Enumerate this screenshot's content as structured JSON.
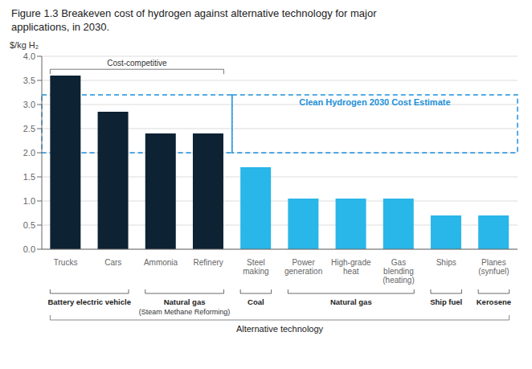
{
  "chart_data": {
    "type": "bar",
    "title": "Figure 1.3 Breakeven cost of hydrogen against alternative technology for major\napplications, in 2030.",
    "categories": [
      "Trucks",
      "Cars",
      "Ammonia",
      "Refinery",
      "Steel\nmaking",
      "Power\ngeneration",
      "High-grade\nheat",
      "Gas\nblending\n(heating)",
      "Ships",
      "Planes\n(synfuel)"
    ],
    "values": [
      3.6,
      2.85,
      2.4,
      2.4,
      1.7,
      1.05,
      1.05,
      1.05,
      0.7,
      0.7
    ],
    "colors": [
      "#0d2233",
      "#0d2233",
      "#0d2233",
      "#0d2233",
      "#29b6e8",
      "#29b6e8",
      "#29b6e8",
      "#29b6e8",
      "#29b6e8",
      "#29b6e8"
    ],
    "ylim": [
      0,
      4.0
    ],
    "yticks": [
      {
        "value": 0,
        "label": "0.0"
      },
      0.5,
      {
        "value": 1,
        "label": "1.0"
      },
      1.5,
      {
        "value": 2,
        "label": "2.0"
      },
      2.5,
      {
        "value": 3,
        "label": "3.0"
      },
      3.5,
      {
        "value": 4,
        "label": "4.0"
      }
    ],
    "ylabel": "$/kg H₂",
    "grid": true,
    "annotations": [
      {
        "text": "Cost-competitive",
        "categories": [
          "Trucks",
          "Cars",
          "Ammonia",
          "Refinery"
        ]
      },
      {
        "text": "Clean Hydrogen 2030 Cost Estimate",
        "range": [
          2.0,
          3.2
        ],
        "color": "#1e90d8",
        "categories": [
          "Steel\nmaking",
          "Power\ngeneration",
          "High-grade\nheat",
          "Gas\nblending\n(heating)",
          "Ships",
          "Planes\n(synfuel)"
        ]
      }
    ],
    "groups": [
      {
        "text": "Battery electric vehicle",
        "categories": [
          "Trucks",
          "Cars"
        ]
      },
      {
        "text": "Natural gas",
        "subtext": "(Steam Methane Reforming)",
        "categories": [
          "Ammonia",
          "Refinery"
        ]
      },
      {
        "text": "Coal",
        "categories": [
          "Steel\nmaking"
        ]
      },
      {
        "text": "Natural gas",
        "categories": [
          "Power\ngeneration",
          "High-grade\nheat",
          "Gas\nblending\n(heating)"
        ]
      },
      {
        "text": "Ship fuel",
        "categories": [
          "Ships"
        ]
      },
      {
        "text": "Kerosene",
        "categories": [
          "Planes\n(synfuel)"
        ]
      }
    ],
    "group_title": "Alternative technology"
  }
}
